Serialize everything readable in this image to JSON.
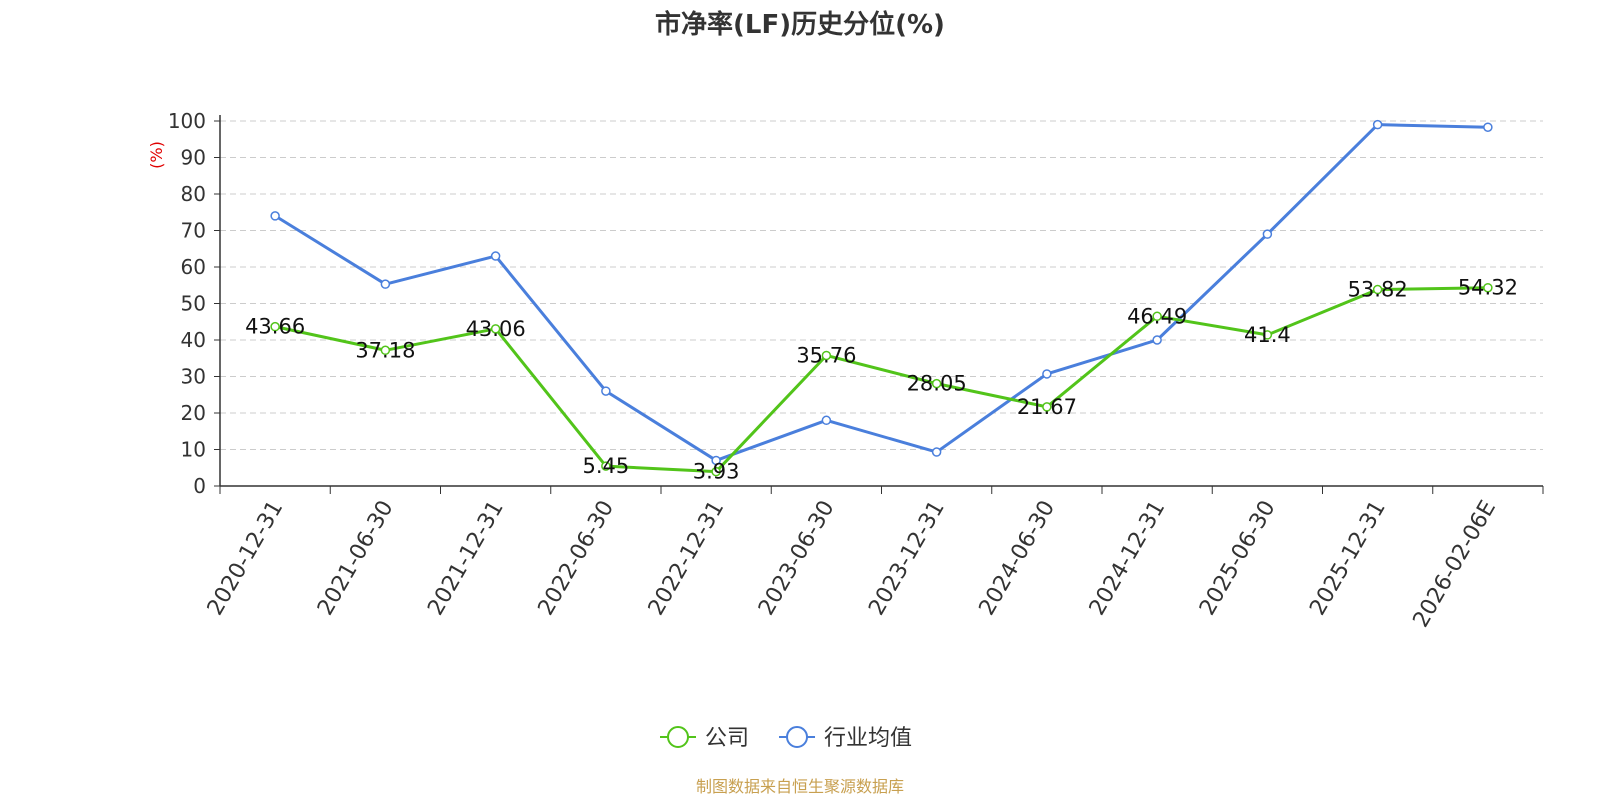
{
  "chart_data": {
    "type": "line",
    "title": "市净率(LF)历史分位(%)",
    "ylabel": "(%)",
    "ylim": [
      0,
      100
    ],
    "yticks": [
      0,
      10,
      20,
      30,
      40,
      50,
      60,
      70,
      80,
      90,
      100
    ],
    "grid": true,
    "legend_position": "bottom-center",
    "categories": [
      "2020-12-31",
      "2021-06-30",
      "2021-12-31",
      "2022-06-30",
      "2022-12-31",
      "2023-06-30",
      "2023-12-31",
      "2024-06-30",
      "2024-12-31",
      "2025-06-30",
      "2025-12-31",
      "2026-02-06E"
    ],
    "series": [
      {
        "name": "公司",
        "color": "#52c41a",
        "values": [
          43.66,
          37.18,
          43.06,
          5.45,
          3.93,
          35.76,
          28.05,
          21.67,
          46.49,
          41.4,
          53.82,
          54.32
        ],
        "labels": [
          "43.66",
          "37.18",
          "43.06",
          "5.45",
          "3.93",
          "35.76",
          "28.05",
          "21.67",
          "46.49",
          "41.4",
          "53.82",
          "54.32"
        ]
      },
      {
        "name": "行业均值",
        "color": "#4a7fdc",
        "values": [
          74,
          55.3,
          63,
          26,
          7,
          18,
          9.3,
          30.7,
          40,
          69,
          99,
          98.3
        ]
      }
    ]
  },
  "source": "制图数据来自恒生聚源数据库"
}
